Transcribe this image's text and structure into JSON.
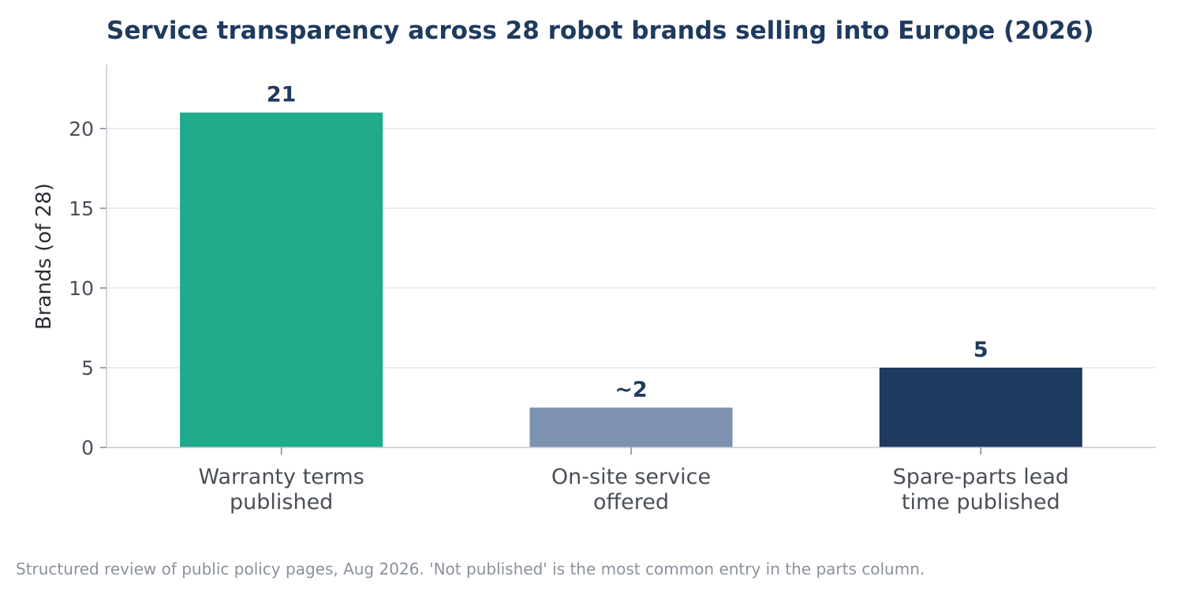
{
  "chart_data": {
    "type": "bar",
    "title": "Service transparency across 28 robot brands selling into Europe (2026)",
    "ylabel": "Brands (of 28)",
    "xlabel": "",
    "ylim": [
      0,
      24
    ],
    "yticks": [
      0,
      5,
      10,
      15,
      20
    ],
    "grid": true,
    "categories": [
      [
        "Warranty terms",
        "published"
      ],
      [
        "On-site service",
        "offered"
      ],
      [
        "Spare-parts lead",
        "time published"
      ]
    ],
    "values": [
      21,
      2.5,
      5
    ],
    "data_labels": [
      "21",
      "~2",
      "5"
    ],
    "colors": [
      "#1faa8c",
      "#7d92ae",
      "#1f3a5f"
    ]
  },
  "footnote": "Structured review of public policy pages, Aug 2026. 'Not published' is the most common entry in the parts column."
}
